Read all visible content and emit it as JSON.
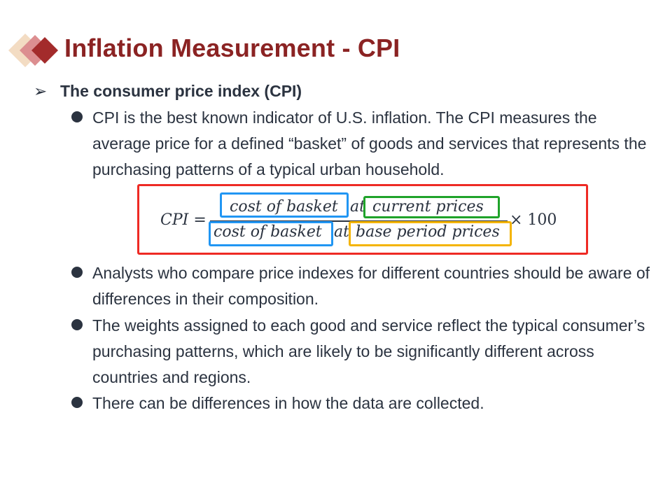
{
  "title": "Inflation Measurement - CPI",
  "logo": {
    "icon": "stacked-diamonds-icon",
    "colors": [
      "#f3dcc3",
      "#d9878a",
      "#a32b2b"
    ]
  },
  "section": {
    "arrow": "➢",
    "heading": "The consumer price index (CPI)"
  },
  "bullets": [
    "CPI is the best known indicator of U.S. inflation. The CPI measures the average price for a defined “basket” of goods and services that represents the purchasing patterns of a typical urban household.",
    "Analysts who compare price indexes for different countries should be aware of differences in their composition.",
    "The weights assigned to each good and service reflect the typical consumer’s purchasing patterns, which are likely to be significantly different across countries and regions.",
    "There can be differences in how the data are collected."
  ],
  "formula": {
    "lhs": "CPI =",
    "numerator_cost": "cost of basket",
    "numerator_at": "at",
    "numerator_prices": "current prices",
    "denominator_cost": "cost of basket",
    "denominator_at": "at",
    "denominator_prices": "base period prices",
    "multiplier": "× 100",
    "colors": {
      "outer_box": "#ee2a24",
      "cost_box": "#2196f3",
      "current_box": "#1fa32a",
      "base_box": "#f4b400"
    }
  }
}
